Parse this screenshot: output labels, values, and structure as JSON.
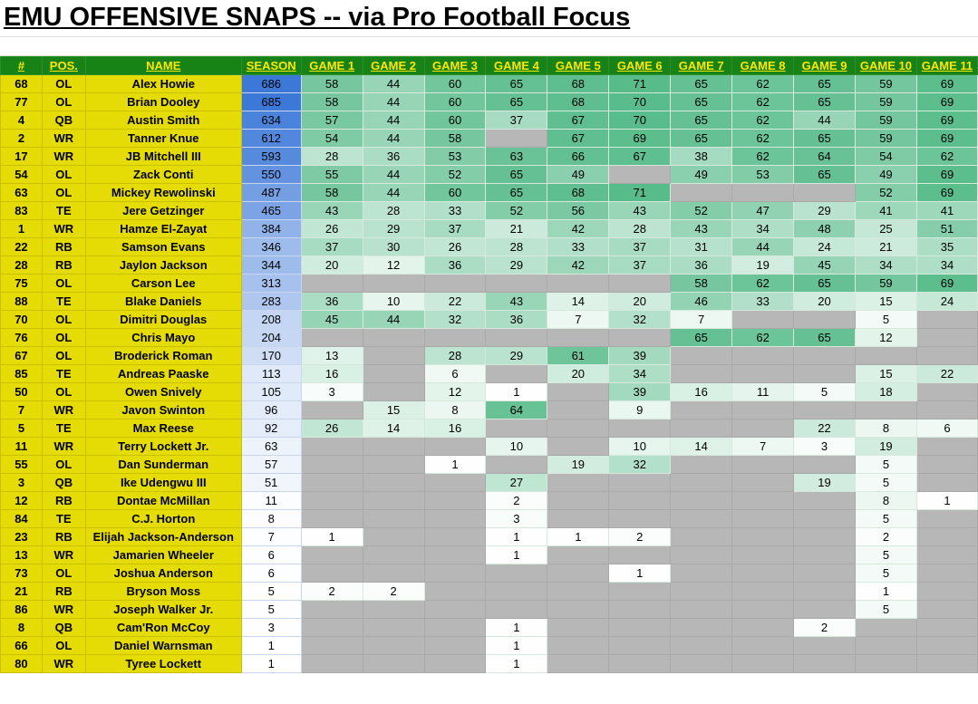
{
  "title": "EMU OFFENSIVE SNAPS -- via Pro Football Focus",
  "headers": [
    "#",
    "POS.",
    "NAME",
    "SEASON",
    "GAME 1",
    "GAME 2",
    "GAME 3",
    "GAME 4",
    "GAME 5",
    "GAME 6",
    "GAME 7",
    "GAME 8",
    "GAME 9",
    "GAME 10",
    "GAME 11"
  ],
  "colors": {
    "header_bg": "#178317",
    "header_text": "#ffe600",
    "player_info_bg": "#e5dc06",
    "no_snaps_bg": "#b7b7b7",
    "season_scale": [
      "#ffffff",
      "#3c78d8"
    ],
    "game_scale": [
      "#ffffff",
      "#57bb8a"
    ]
  },
  "scale_max": {
    "season": 686,
    "game": 71
  },
  "rows": [
    {
      "num": "68",
      "pos": "OL",
      "name": "Alex Howie",
      "season": 686,
      "games": [
        58,
        44,
        60,
        65,
        68,
        71,
        65,
        62,
        65,
        59,
        69
      ]
    },
    {
      "num": "77",
      "pos": "OL",
      "name": "Brian Dooley",
      "season": 685,
      "games": [
        58,
        44,
        60,
        65,
        68,
        70,
        65,
        62,
        65,
        59,
        69
      ]
    },
    {
      "num": "4",
      "pos": "QB",
      "name": "Austin Smith",
      "season": 634,
      "games": [
        57,
        44,
        60,
        37,
        67,
        70,
        65,
        62,
        44,
        59,
        69
      ]
    },
    {
      "num": "2",
      "pos": "WR",
      "name": "Tanner Knue",
      "season": 612,
      "games": [
        54,
        44,
        58,
        null,
        67,
        69,
        65,
        62,
        65,
        59,
        69
      ]
    },
    {
      "num": "17",
      "pos": "WR",
      "name": "JB Mitchell III",
      "season": 593,
      "games": [
        28,
        36,
        53,
        63,
        66,
        67,
        38,
        62,
        64,
        54,
        62
      ]
    },
    {
      "num": "54",
      "pos": "OL",
      "name": "Zack Conti",
      "season": 550,
      "games": [
        55,
        44,
        52,
        65,
        49,
        null,
        49,
        53,
        65,
        49,
        69
      ]
    },
    {
      "num": "63",
      "pos": "OL",
      "name": "Mickey Rewolinski",
      "season": 487,
      "games": [
        58,
        44,
        60,
        65,
        68,
        71,
        null,
        null,
        null,
        52,
        69
      ]
    },
    {
      "num": "83",
      "pos": "TE",
      "name": "Jere Getzinger",
      "season": 465,
      "games": [
        43,
        28,
        33,
        52,
        56,
        43,
        52,
        47,
        29,
        41,
        41
      ]
    },
    {
      "num": "1",
      "pos": "WR",
      "name": "Hamze El-Zayat",
      "season": 384,
      "games": [
        26,
        29,
        37,
        21,
        42,
        28,
        43,
        34,
        48,
        25,
        51
      ]
    },
    {
      "num": "22",
      "pos": "RB",
      "name": "Samson Evans",
      "season": 346,
      "games": [
        37,
        30,
        26,
        28,
        33,
        37,
        31,
        44,
        24,
        21,
        35
      ]
    },
    {
      "num": "28",
      "pos": "RB",
      "name": "Jaylon Jackson",
      "season": 344,
      "games": [
        20,
        12,
        36,
        29,
        42,
        37,
        36,
        19,
        45,
        34,
        34
      ]
    },
    {
      "num": "75",
      "pos": "OL",
      "name": "Carson Lee",
      "season": 313,
      "games": [
        null,
        null,
        null,
        null,
        null,
        null,
        58,
        62,
        65,
        59,
        69
      ]
    },
    {
      "num": "88",
      "pos": "TE",
      "name": "Blake Daniels",
      "season": 283,
      "games": [
        36,
        10,
        22,
        43,
        14,
        20,
        46,
        33,
        20,
        15,
        24
      ]
    },
    {
      "num": "70",
      "pos": "OL",
      "name": "Dimitri Douglas",
      "season": 208,
      "games": [
        45,
        44,
        32,
        36,
        7,
        32,
        7,
        null,
        null,
        5,
        null
      ]
    },
    {
      "num": "76",
      "pos": "OL",
      "name": "Chris Mayo",
      "season": 204,
      "games": [
        null,
        null,
        null,
        null,
        null,
        null,
        65,
        62,
        65,
        12,
        null
      ]
    },
    {
      "num": "67",
      "pos": "OL",
      "name": "Broderick Roman",
      "season": 170,
      "games": [
        13,
        null,
        28,
        29,
        61,
        39,
        null,
        null,
        null,
        null,
        null
      ]
    },
    {
      "num": "85",
      "pos": "TE",
      "name": "Andreas Paaske",
      "season": 113,
      "games": [
        16,
        null,
        6,
        null,
        20,
        34,
        null,
        null,
        null,
        15,
        22
      ]
    },
    {
      "num": "50",
      "pos": "OL",
      "name": "Owen Snively",
      "season": 105,
      "games": [
        3,
        null,
        12,
        1,
        null,
        39,
        16,
        11,
        5,
        18,
        null
      ]
    },
    {
      "num": "7",
      "pos": "WR",
      "name": "Javon Swinton",
      "season": 96,
      "games": [
        null,
        15,
        8,
        64,
        null,
        9,
        null,
        null,
        null,
        null,
        null
      ]
    },
    {
      "num": "5",
      "pos": "TE",
      "name": "Max Reese",
      "season": 92,
      "games": [
        26,
        14,
        16,
        null,
        null,
        null,
        null,
        null,
        22,
        8,
        6
      ]
    },
    {
      "num": "11",
      "pos": "WR",
      "name": "Terry Lockett Jr.",
      "season": 63,
      "games": [
        null,
        null,
        null,
        10,
        null,
        10,
        14,
        7,
        3,
        19,
        null
      ]
    },
    {
      "num": "55",
      "pos": "OL",
      "name": "Dan Sunderman",
      "season": 57,
      "games": [
        null,
        null,
        1,
        null,
        19,
        32,
        null,
        null,
        null,
        5,
        null
      ]
    },
    {
      "num": "3",
      "pos": "QB",
      "name": "Ike Udengwu III",
      "season": 51,
      "games": [
        null,
        null,
        null,
        27,
        null,
        null,
        null,
        null,
        19,
        5,
        null
      ]
    },
    {
      "num": "12",
      "pos": "RB",
      "name": "Dontae McMillan",
      "season": 11,
      "games": [
        null,
        null,
        null,
        2,
        null,
        null,
        null,
        null,
        null,
        8,
        1
      ]
    },
    {
      "num": "84",
      "pos": "TE",
      "name": "C.J. Horton",
      "season": 8,
      "games": [
        null,
        null,
        null,
        3,
        null,
        null,
        null,
        null,
        null,
        5,
        null
      ]
    },
    {
      "num": "23",
      "pos": "RB",
      "name": "Elijah Jackson-Anderson",
      "season": 7,
      "games": [
        1,
        null,
        null,
        1,
        1,
        2,
        null,
        null,
        null,
        2,
        null
      ]
    },
    {
      "num": "13",
      "pos": "WR",
      "name": "Jamarien Wheeler",
      "season": 6,
      "games": [
        null,
        null,
        null,
        1,
        null,
        null,
        null,
        null,
        null,
        5,
        null
      ]
    },
    {
      "num": "73",
      "pos": "OL",
      "name": "Joshua Anderson",
      "season": 6,
      "games": [
        null,
        null,
        null,
        null,
        null,
        1,
        null,
        null,
        null,
        5,
        null
      ]
    },
    {
      "num": "21",
      "pos": "RB",
      "name": "Bryson Moss",
      "season": 5,
      "games": [
        2,
        2,
        null,
        null,
        null,
        null,
        null,
        null,
        null,
        1,
        null
      ]
    },
    {
      "num": "86",
      "pos": "WR",
      "name": "Joseph Walker Jr.",
      "season": 5,
      "games": [
        null,
        null,
        null,
        null,
        null,
        null,
        null,
        null,
        null,
        5,
        null
      ]
    },
    {
      "num": "8",
      "pos": "QB",
      "name": "Cam'Ron McCoy",
      "season": 3,
      "games": [
        null,
        null,
        null,
        1,
        null,
        null,
        null,
        null,
        2,
        null,
        null
      ]
    },
    {
      "num": "66",
      "pos": "OL",
      "name": "Daniel Warnsman",
      "season": 1,
      "games": [
        null,
        null,
        null,
        1,
        null,
        null,
        null,
        null,
        null,
        null,
        null
      ]
    },
    {
      "num": "80",
      "pos": "WR",
      "name": "Tyree Lockett",
      "season": 1,
      "games": [
        null,
        null,
        null,
        1,
        null,
        null,
        null,
        null,
        null,
        null,
        null
      ]
    }
  ]
}
